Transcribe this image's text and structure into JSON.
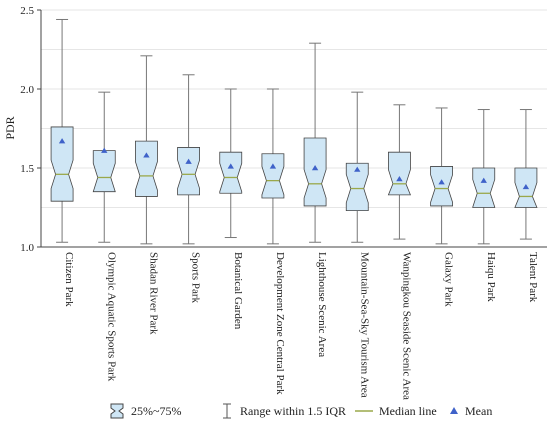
{
  "chart_data": {
    "type": "box",
    "ylabel": "PDR",
    "xlabel": "",
    "ylim": [
      1.0,
      2.5
    ],
    "yticks": [
      "1.0",
      "1.5",
      "2.0",
      "2.5"
    ],
    "grid": true,
    "legend_position": "bottom",
    "categories": [
      "Citizen Park",
      "Olympic Aquatic Sports Park",
      "Shadan River Park",
      "Sports Park",
      "Botanical Garden",
      "Development Zone Central Park",
      "Lighthouse Scenic Area",
      "Mountain-Sea-Sky Tourism Area",
      "Wanpingkou Seaside Scenic Area",
      "Galaxy Park",
      "Haiqu Park",
      "Talent Park"
    ],
    "boxes": [
      {
        "min": 1.03,
        "q1": 1.29,
        "median": 1.46,
        "q3": 1.76,
        "max": 2.44,
        "mean": 1.67
      },
      {
        "min": 1.03,
        "q1": 1.35,
        "median": 1.44,
        "q3": 1.61,
        "max": 1.98,
        "mean": 1.61
      },
      {
        "min": 1.02,
        "q1": 1.32,
        "median": 1.45,
        "q3": 1.67,
        "max": 2.21,
        "mean": 1.58
      },
      {
        "min": 1.02,
        "q1": 1.33,
        "median": 1.46,
        "q3": 1.63,
        "max": 2.09,
        "mean": 1.54
      },
      {
        "min": 1.06,
        "q1": 1.34,
        "median": 1.44,
        "q3": 1.6,
        "max": 2.0,
        "mean": 1.51
      },
      {
        "min": 1.02,
        "q1": 1.31,
        "median": 1.42,
        "q3": 1.59,
        "max": 2.0,
        "mean": 1.51
      },
      {
        "min": 1.03,
        "q1": 1.26,
        "median": 1.4,
        "q3": 1.69,
        "max": 2.29,
        "mean": 1.5
      },
      {
        "min": 1.03,
        "q1": 1.23,
        "median": 1.37,
        "q3": 1.53,
        "max": 1.98,
        "mean": 1.49
      },
      {
        "min": 1.05,
        "q1": 1.33,
        "median": 1.4,
        "q3": 1.6,
        "max": 1.9,
        "mean": 1.43
      },
      {
        "min": 1.02,
        "q1": 1.26,
        "median": 1.37,
        "q3": 1.51,
        "max": 1.88,
        "mean": 1.41
      },
      {
        "min": 1.02,
        "q1": 1.25,
        "median": 1.34,
        "q3": 1.5,
        "max": 1.87,
        "mean": 1.42
      },
      {
        "min": 1.05,
        "q1": 1.25,
        "median": 1.32,
        "q3": 1.5,
        "max": 1.87,
        "mean": 1.38
      }
    ],
    "legend": [
      {
        "kind": "box",
        "label": "25%~75%"
      },
      {
        "kind": "whisker",
        "label": "Range within 1.5 IQR"
      },
      {
        "kind": "median",
        "label": "Median line"
      },
      {
        "kind": "mean",
        "label": "Mean"
      }
    ],
    "colors": {
      "box_fill": "#cfe6f5",
      "box_stroke": "#444444",
      "whisker": "#777777",
      "median": "#9aa84a",
      "mean": "#3f62c9",
      "grid": "#e6e6e6"
    }
  }
}
